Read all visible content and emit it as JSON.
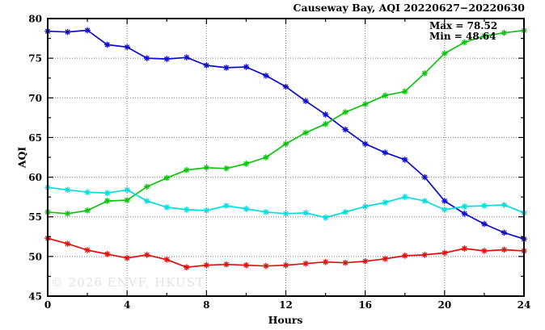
{
  "title": "Causeway Bay, AQI 20220627−20220630",
  "watermark": "© 2026 ENVF, HKUST",
  "annotation": {
    "max_label": "Max = 78.52",
    "min_label": "Min = 48.64"
  },
  "chart_data": {
    "type": "line",
    "title": "Causeway Bay, AQI 20220627−20220630",
    "xlabel": "Hours",
    "ylabel": "AQI",
    "xlim": [
      0,
      24
    ],
    "ylim": [
      45,
      80
    ],
    "x_major_ticks": [
      0,
      4,
      8,
      12,
      16,
      20,
      24
    ],
    "x_minor_step": 2,
    "y_major_ticks": [
      45,
      50,
      55,
      60,
      65,
      70,
      75,
      80
    ],
    "y_minor_step": 2.5,
    "grid": "dotted lines at interior major ticks, mirrored inward ticks on all four borders",
    "legend": "none",
    "marker": "asterisk",
    "max_value": 78.52,
    "min_value": 48.64,
    "x": [
      0,
      1,
      2,
      3,
      4,
      5,
      6,
      7,
      8,
      9,
      10,
      11,
      12,
      13,
      14,
      15,
      16,
      17,
      18,
      19,
      20,
      21,
      22,
      23,
      24
    ],
    "series": [
      {
        "name": "series-blue-day1",
        "color": "#0a0ad2",
        "values": [
          78.4,
          78.3,
          78.52,
          76.7,
          76.4,
          75.0,
          74.9,
          75.1,
          74.1,
          73.8,
          73.9,
          72.8,
          71.4,
          69.6,
          67.9,
          66.0,
          64.2,
          63.1,
          62.2,
          60.0,
          57.0,
          55.4,
          54.1,
          53.0,
          52.2
        ]
      },
      {
        "name": "series-green-day2",
        "color": "#0cc40c",
        "values": [
          55.6,
          55.4,
          55.8,
          57.0,
          57.1,
          58.8,
          59.9,
          60.9,
          61.2,
          61.1,
          61.7,
          62.5,
          64.2,
          65.6,
          66.7,
          68.2,
          69.2,
          70.3,
          70.8,
          73.1,
          75.6,
          77.0,
          77.8,
          78.2,
          78.5
        ]
      },
      {
        "name": "series-cyan-day3",
        "color": "#00dede",
        "values": [
          58.7,
          58.4,
          58.1,
          58.0,
          58.4,
          57.0,
          56.2,
          55.9,
          55.8,
          56.4,
          56.0,
          55.6,
          55.4,
          55.5,
          54.9,
          55.6,
          56.3,
          56.8,
          57.5,
          57.0,
          55.9,
          56.3,
          56.4,
          56.5,
          55.5
        ]
      },
      {
        "name": "series-red-day4",
        "color": "#e60c0c",
        "values": [
          52.3,
          51.6,
          50.8,
          50.3,
          49.8,
          50.2,
          49.6,
          48.64,
          48.9,
          49.0,
          48.9,
          48.8,
          48.9,
          49.1,
          49.3,
          49.2,
          49.4,
          49.7,
          50.1,
          50.2,
          50.45,
          51.0,
          50.7,
          50.85,
          50.7
        ]
      }
    ]
  },
  "colors": {
    "background": "#ffffff",
    "axis": "#000000",
    "grid": "#787878",
    "watermark": "#e2e2e2"
  }
}
